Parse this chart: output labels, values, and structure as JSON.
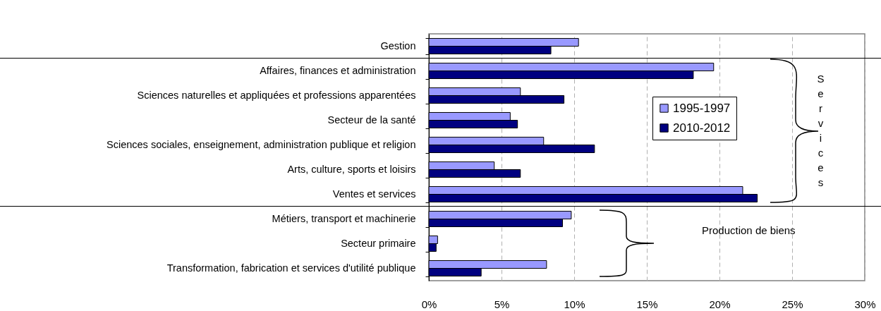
{
  "chart_data": {
    "type": "bar",
    "orientation": "horizontal",
    "categories": [
      "Gestion",
      "Affaires, finances et administration",
      "Sciences naturelles et appliquées et professions apparentées",
      "Secteur de la santé",
      "Sciences sociales, enseignement, administration publique et religion",
      "Arts, culture, sports et loisirs",
      "Ventes et services",
      "Métiers, transport et machinerie",
      "Secteur primaire",
      "Transformation, fabrication et services d'utilité publique"
    ],
    "series": [
      {
        "name": "1995-1997",
        "color": "#9999ff",
        "values": [
          10.3,
          19.6,
          6.3,
          5.6,
          7.9,
          4.5,
          21.6,
          9.8,
          0.6,
          8.1
        ]
      },
      {
        "name": "2010-2012",
        "color": "#000080",
        "values": [
          8.4,
          18.2,
          9.3,
          6.1,
          11.4,
          6.3,
          22.6,
          9.2,
          0.5,
          3.6
        ]
      }
    ],
    "xlim": [
      0,
      30
    ],
    "xticks": [
      {
        "value": 0,
        "label": "0%"
      },
      {
        "value": 5,
        "label": "5%"
      },
      {
        "value": 10,
        "label": "10%"
      },
      {
        "value": 15,
        "label": "15%"
      },
      {
        "value": 20,
        "label": "20%"
      },
      {
        "value": 25,
        "label": "25%"
      },
      {
        "value": 30,
        "label": "30%"
      }
    ],
    "grid": "x",
    "legend": "right",
    "annotations": [
      "Services",
      "Production de biens"
    ]
  }
}
